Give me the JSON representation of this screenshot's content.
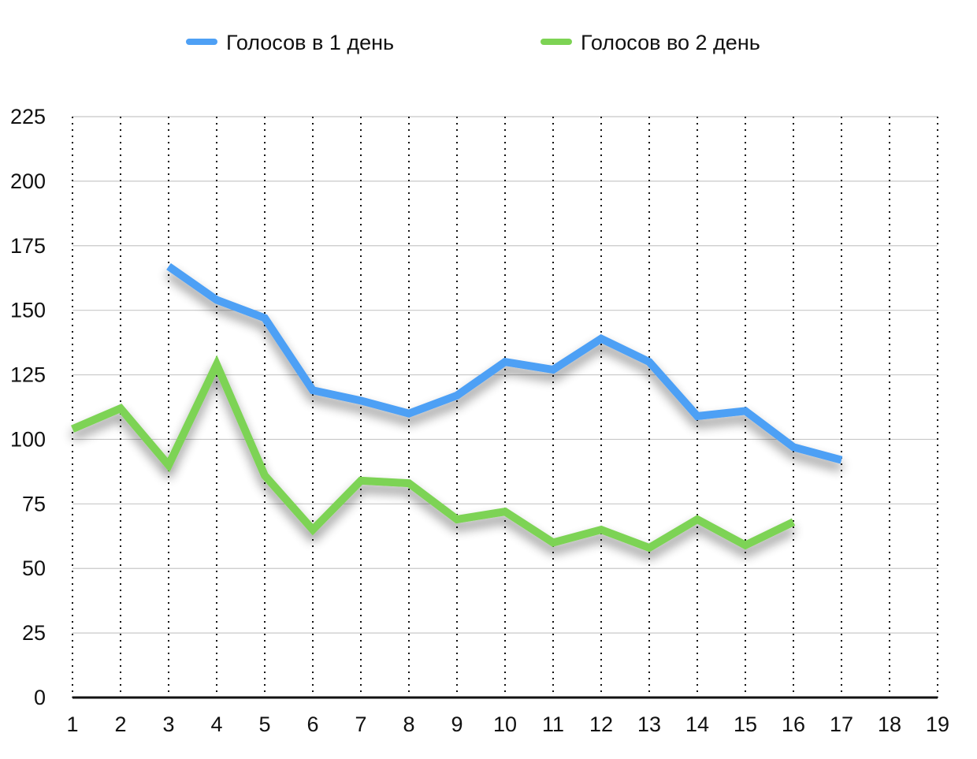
{
  "chart_data": {
    "type": "line",
    "x": [
      "1",
      "2",
      "3",
      "4",
      "5",
      "6",
      "7",
      "8",
      "9",
      "10",
      "11",
      "12",
      "13",
      "14",
      "15",
      "16",
      "17",
      "18",
      "19"
    ],
    "ylim": [
      0,
      225
    ],
    "yticks": [
      0,
      25,
      50,
      75,
      100,
      125,
      150,
      175,
      200,
      225
    ],
    "grid": {
      "horizontal": true,
      "vertical": "dotted"
    },
    "legend_position": "top",
    "series": [
      {
        "name": "Голосов в 1 день",
        "color": "#4ea0f5",
        "values": [
          null,
          null,
          167,
          154,
          147,
          119,
          115,
          110,
          117,
          130,
          127,
          139,
          130,
          109,
          111,
          97,
          92,
          null,
          null
        ]
      },
      {
        "name": "Голосов во 2 день",
        "color": "#7dd354",
        "values": [
          104,
          112,
          90,
          129,
          86,
          65,
          84,
          83,
          69,
          72,
          60,
          65,
          58,
          69,
          59,
          68,
          null,
          null,
          null
        ]
      }
    ]
  }
}
